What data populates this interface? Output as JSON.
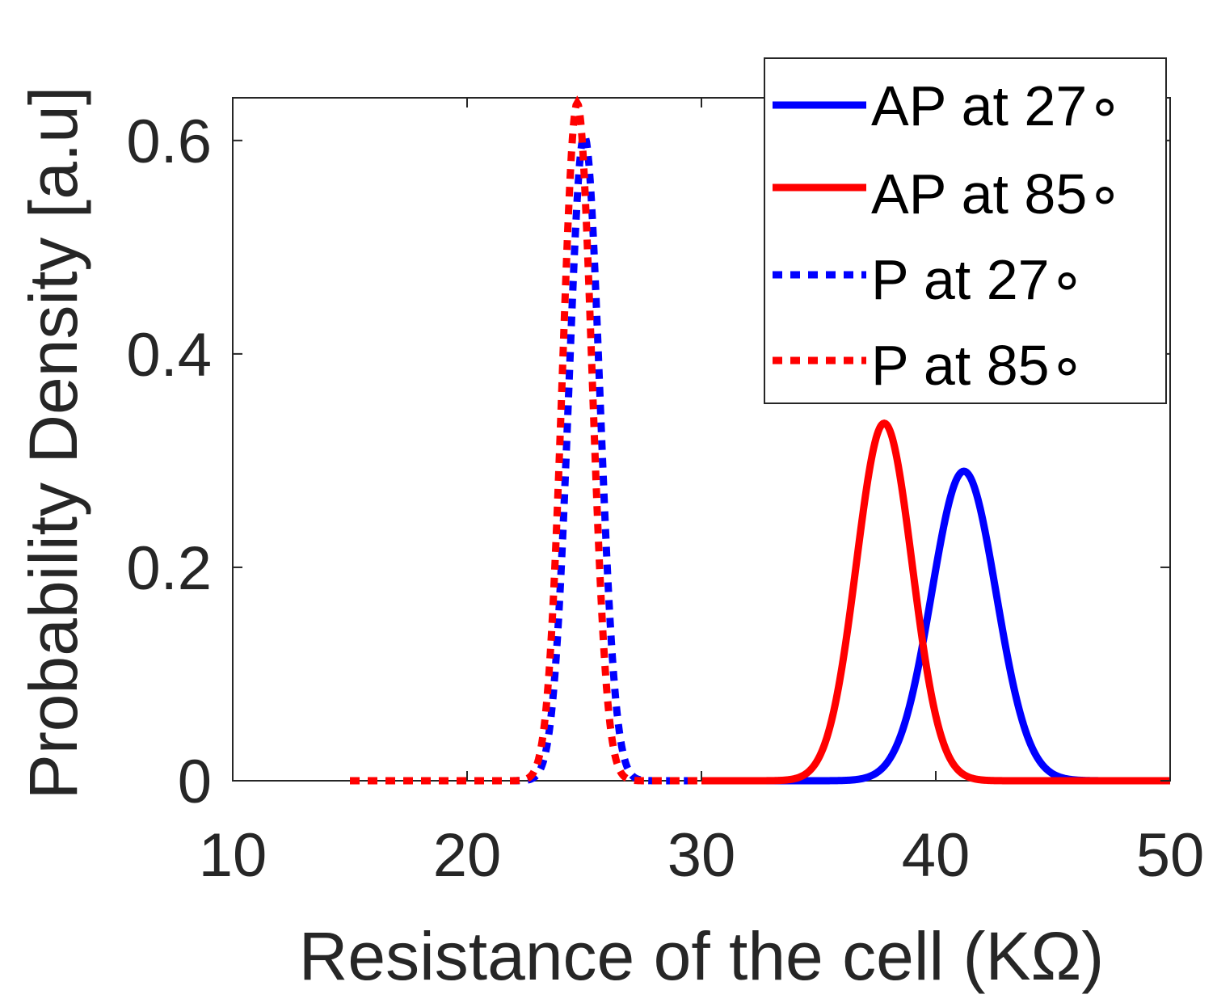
{
  "chart_data": {
    "type": "line",
    "title": "",
    "xlabel": "Resistance of the cell (KΩ)",
    "ylabel": "Probability Density [a.u]",
    "xlim": [
      10,
      50
    ],
    "ylim": [
      0,
      0.64
    ],
    "xticks": [
      10,
      20,
      30,
      40,
      50
    ],
    "xtick_labels": [
      "10",
      "20",
      "30",
      "40",
      "50"
    ],
    "yticks": [
      0,
      0.2,
      0.4,
      0.6
    ],
    "ytick_labels": [
      "0",
      "0.2",
      "0.4",
      "0.6"
    ],
    "grid": false,
    "legend_position": "top-right",
    "series": [
      {
        "name": "AP at 27∘",
        "color": "#0000ff",
        "style": "solid",
        "mean": 41.2,
        "peak": 0.29,
        "x_range": [
          30,
          50
        ]
      },
      {
        "name": "AP at 85∘",
        "color": "#ff0000",
        "style": "solid",
        "mean": 37.8,
        "peak": 0.335,
        "x_range": [
          30,
          50
        ]
      },
      {
        "name": "P at 27∘",
        "color": "#0000ff",
        "style": "dotted",
        "mean": 25.0,
        "peak": 0.605,
        "x_range": [
          15,
          30
        ]
      },
      {
        "name": "P at 85∘",
        "color": "#ff0000",
        "style": "dotted",
        "mean": 24.7,
        "peak": 0.635,
        "x_range": [
          15,
          30
        ]
      }
    ]
  }
}
